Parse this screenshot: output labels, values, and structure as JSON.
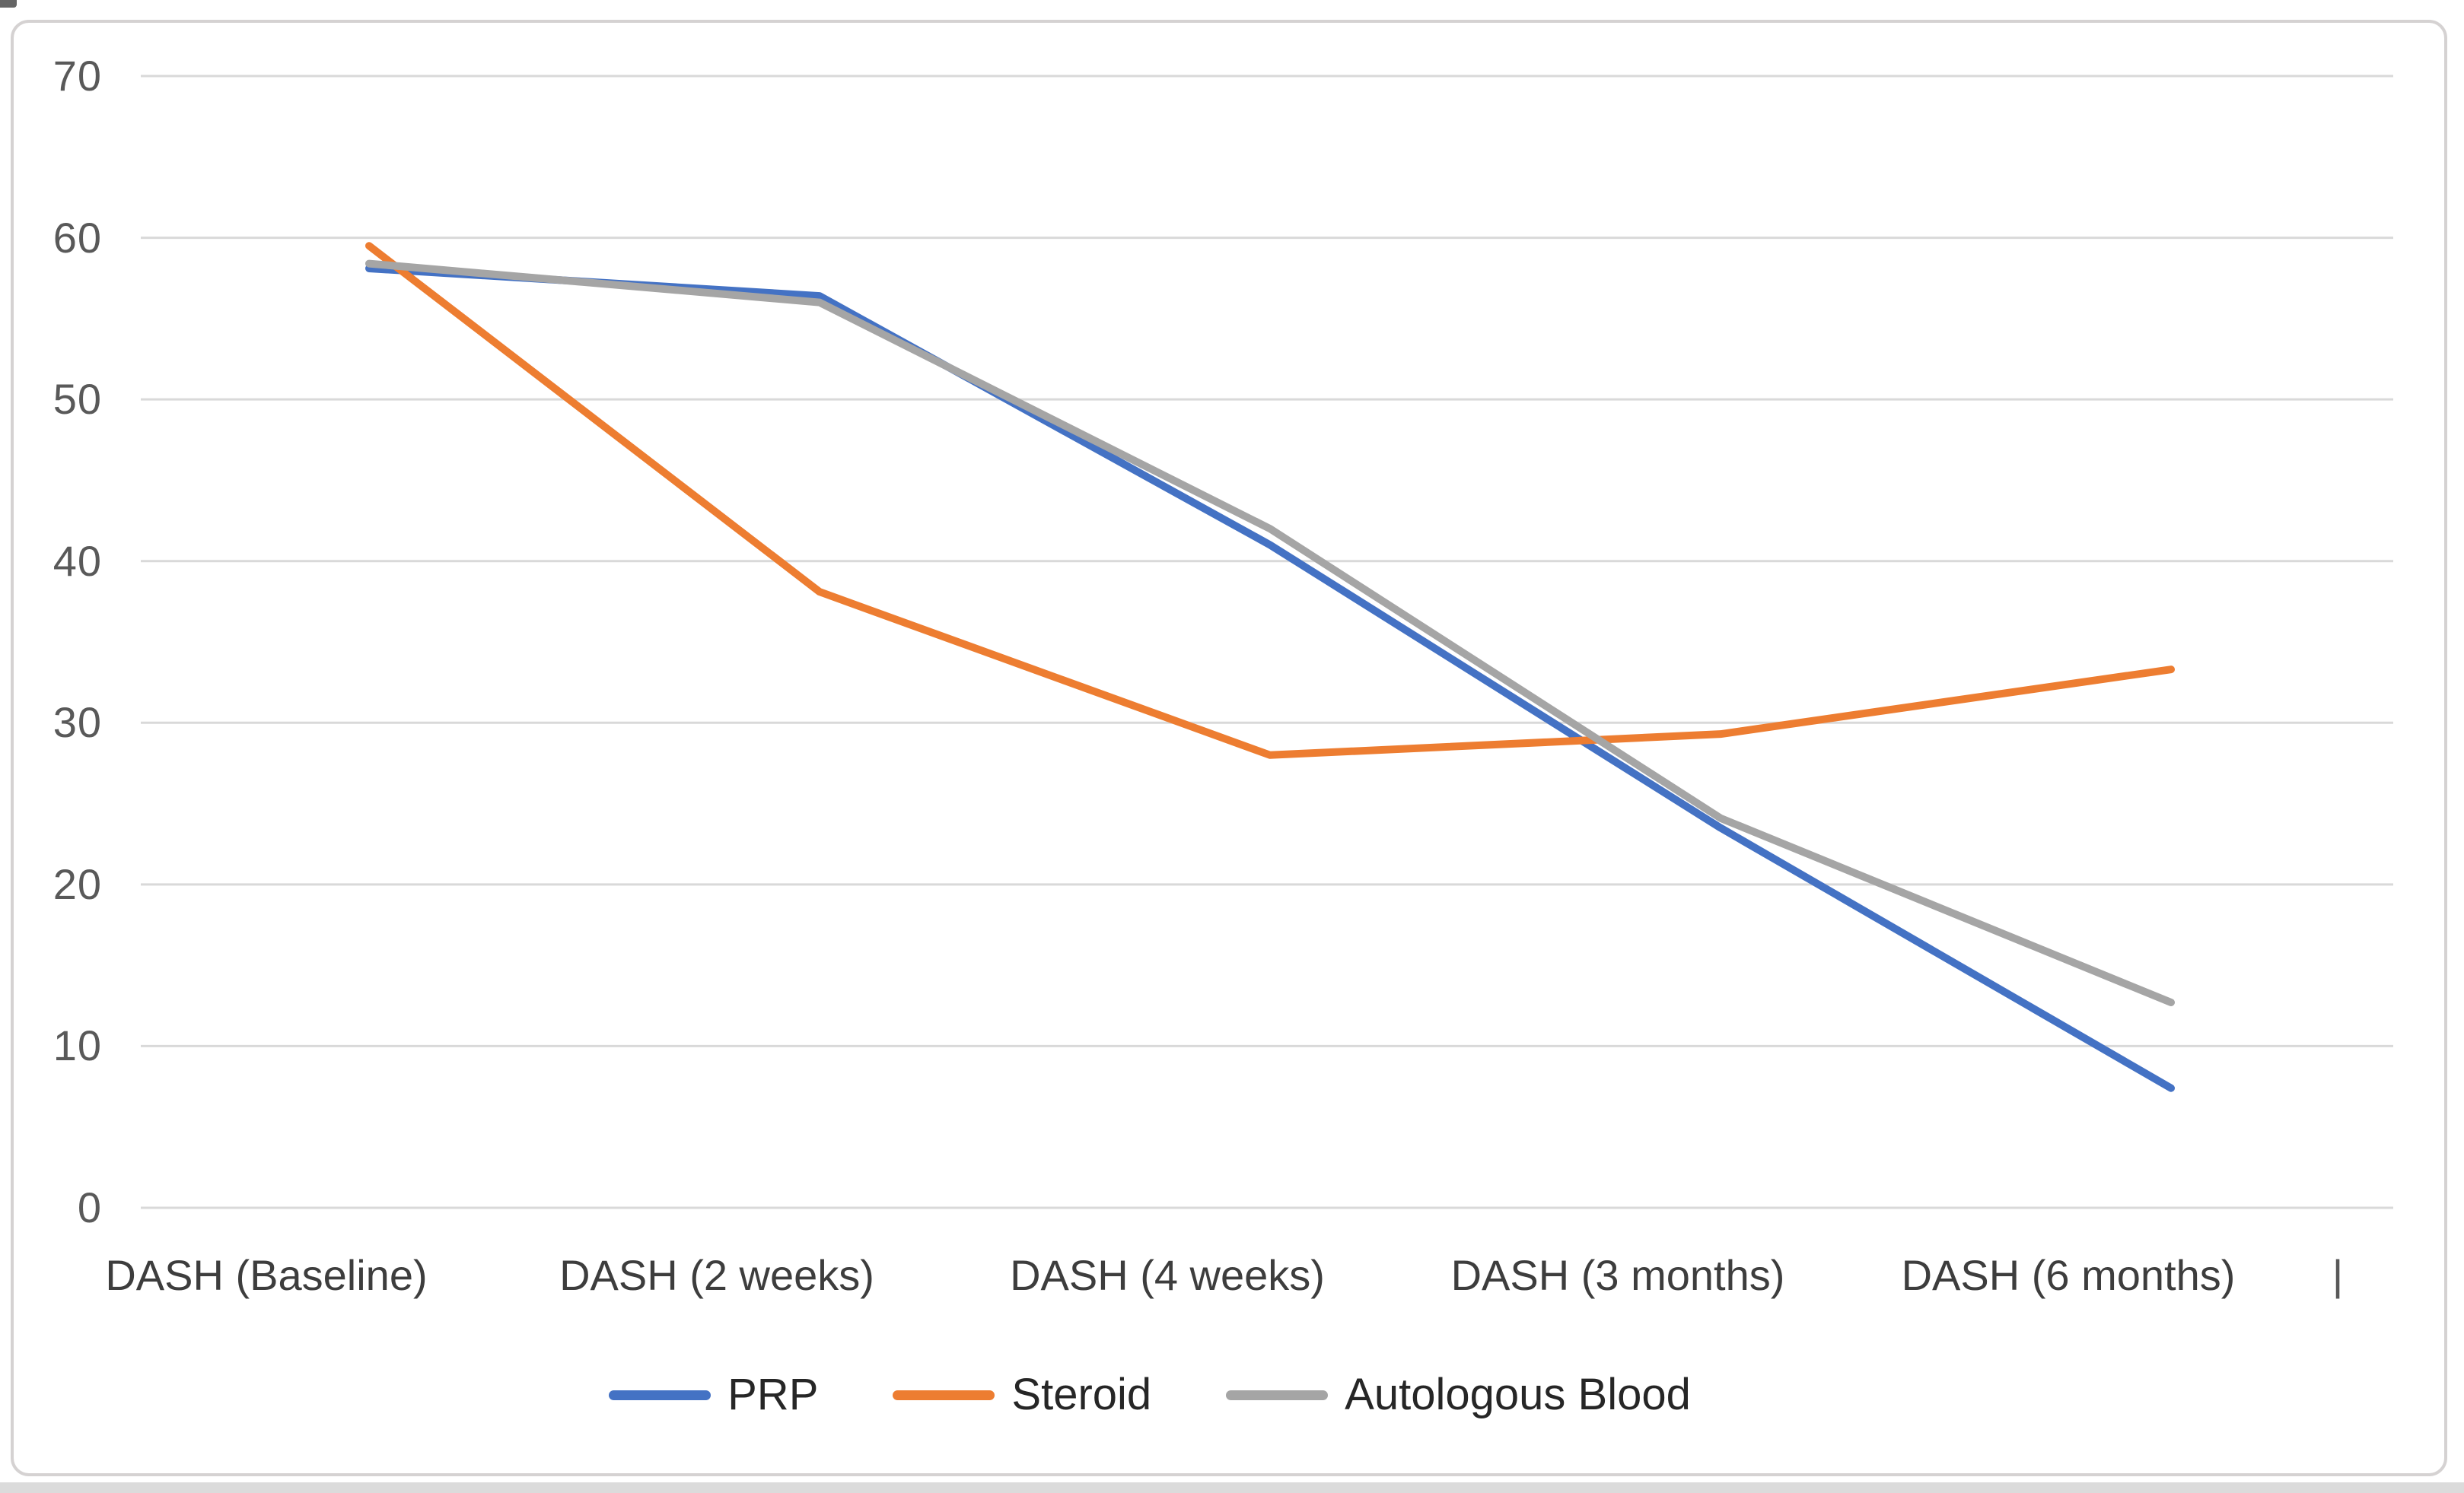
{
  "chart_data": {
    "type": "line",
    "title": "",
    "categories": [
      "DASH (Baseline)",
      "DASH (2 weeks)",
      "DASH  (4 weeks)",
      "DASH  (3 months)",
      "DASH   (6 months)"
    ],
    "series": [
      {
        "name": "PRP",
        "color": "#4472C4",
        "values": [
          58.1,
          56.4,
          41.0,
          23.5,
          7.4
        ]
      },
      {
        "name": "Steroid",
        "color": "#ED7D31",
        "values": [
          59.5,
          38.1,
          28.0,
          29.3,
          33.3
        ]
      },
      {
        "name": "Autologous Blood",
        "color": "#A5A5A5",
        "values": [
          58.4,
          56.0,
          42.0,
          24.1,
          12.7
        ]
      }
    ],
    "y_ticks": [
      70,
      60,
      50,
      40,
      30,
      20,
      10,
      0
    ],
    "ylim": [
      0,
      70
    ],
    "xlabel": "",
    "ylabel": "",
    "grid": "horizontal",
    "gridline_color": "#D9D9D9",
    "legend_position": "bottom",
    "x_axis_extra_tick": "|"
  }
}
